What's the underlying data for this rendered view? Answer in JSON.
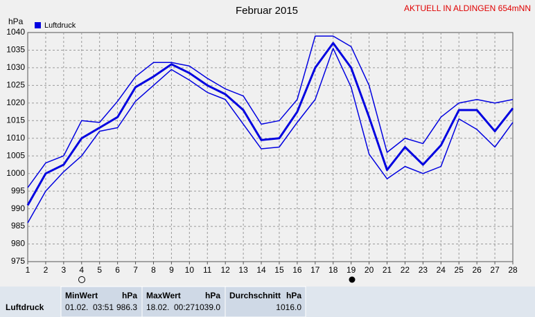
{
  "chart_data": {
    "type": "line",
    "title": "Februar 2015",
    "annotation": "AKTUELL IN ALDINGEN 654mNN",
    "y_label": "hPa",
    "x": [
      1,
      2,
      3,
      4,
      5,
      6,
      7,
      8,
      9,
      10,
      11,
      12,
      13,
      14,
      15,
      16,
      17,
      18,
      19,
      20,
      21,
      22,
      23,
      24,
      25,
      26,
      27,
      28
    ],
    "xlim": [
      1,
      28
    ],
    "xticks": [
      1,
      2,
      3,
      4,
      5,
      6,
      7,
      8,
      9,
      10,
      11,
      12,
      13,
      14,
      15,
      16,
      17,
      18,
      19,
      20,
      21,
      22,
      23,
      24,
      25,
      26,
      27,
      28
    ],
    "ylim": [
      975,
      1040
    ],
    "yticks": [
      975,
      980,
      985,
      990,
      995,
      1000,
      1005,
      1010,
      1015,
      1020,
      1025,
      1030,
      1035,
      1040
    ],
    "grid": true,
    "series": [
      {
        "name": "Luftdruck",
        "color": "#0000e0",
        "values": [
          991,
          1000,
          1002.5,
          1010,
          1013,
          1016,
          1024.5,
          1027.5,
          1031,
          1028.5,
          1025,
          1022.5,
          1018,
          1009.5,
          1010,
          1017.5,
          1030,
          1037,
          1030,
          1016,
          1001,
          1007.5,
          1002.5,
          1008,
          1018,
          1018,
          1012,
          1018.5
        ],
        "max": [
          996,
          1003,
          1005,
          1015,
          1014.5,
          1020.5,
          1027.5,
          1031.5,
          1031.5,
          1030.5,
          1027,
          1024,
          1022,
          1014,
          1015,
          1021,
          1039,
          1039,
          1036,
          1025,
          1006,
          1010,
          1008.5,
          1016,
          1020,
          1021,
          1020,
          1021
        ],
        "min": [
          986,
          995,
          1000.5,
          1005,
          1012,
          1013,
          1020.5,
          1025,
          1029.5,
          1026.5,
          1023,
          1021,
          1014,
          1007,
          1007.5,
          1014.5,
          1021,
          1035.5,
          1024.5,
          1005.5,
          998.5,
          1002,
          1000,
          1002,
          1015.5,
          1012.5,
          1007.5,
          1014.5
        ]
      }
    ]
  },
  "table": {
    "headers": [
      "MinWert",
      "hPa",
      "MaxWert",
      "hPa",
      "Durchschnitt",
      "hPa"
    ],
    "rows": [
      [
        "Luftdruck",
        "01.02.",
        "03:51",
        "986.3",
        "18.02.",
        "00:27",
        "1039.0",
        "1016.0"
      ]
    ]
  }
}
